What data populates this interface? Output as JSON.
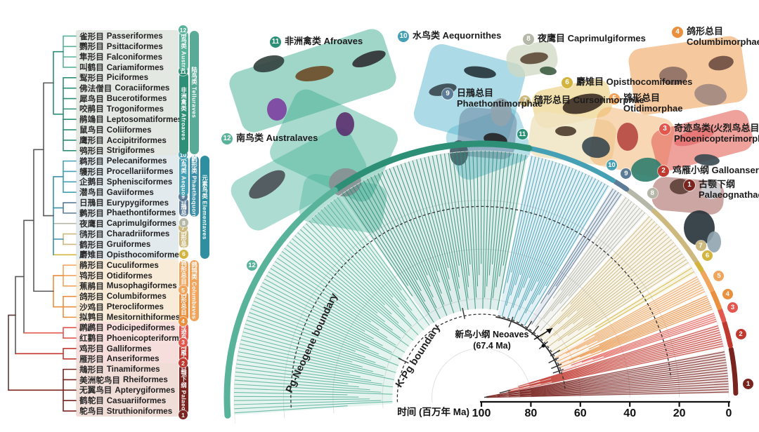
{
  "clades": [
    {
      "badge": "1",
      "cn": "古颚下纲",
      "en": "Palaeognathae",
      "color": "#7a2420",
      "rows": [
        32,
        36
      ],
      "badge_pos": "bottom",
      "angle_start_deg": 1,
      "angle_end_deg": 11,
      "origin_age_ma": 98,
      "tip_lineages": 16
    },
    {
      "badge": "2",
      "cn": "鸡雁小纲",
      "en": "Galloanseres",
      "color": "#c0392f",
      "rows": [
        30,
        31
      ],
      "badge_pos": "bottom",
      "angle_start_deg": 11.8,
      "angle_end_deg": 17.2,
      "origin_age_ma": 89,
      "tip_lineages": 10
    },
    {
      "badge": "3",
      "cn": "奇迹鸟类(火烈鸟总目)",
      "en": "Phoenicopterimorphae",
      "color": "#e2574e",
      "rows": [
        28,
        29
      ],
      "badge_pos": "bottom",
      "angle_start_deg": 17.8,
      "angle_end_deg": 20.2,
      "origin_age_ma": 66,
      "tip_lineages": 5
    },
    {
      "badge": "4",
      "cn": "鸽形总目",
      "en": "Columbimorphae",
      "color": "#e98f3e",
      "rows": [
        25,
        27
      ],
      "badge_pos": "bottom",
      "angle_start_deg": 20.8,
      "angle_end_deg": 24.6,
      "origin_age_ma": 66,
      "tip_lineages": 8
    },
    {
      "badge": "5",
      "cn": "鸨形总目",
      "en": "Otidimorphae",
      "color": "#f0a45c",
      "rows": [
        22,
        24
      ],
      "badge_pos": "bottom",
      "angle_start_deg": 25.2,
      "angle_end_deg": 29.6,
      "origin_age_ma": 66,
      "tip_lineages": 8
    },
    {
      "badge": "6",
      "cn": "麝雉目",
      "en": "Opisthocomiformes",
      "color": "#d3b43f",
      "rows": [
        21,
        21
      ],
      "badge_pos": "right",
      "angle_start_deg": 30.2,
      "angle_end_deg": 32.2,
      "origin_age_ma": 64,
      "tip_lineages": 2
    },
    {
      "badge": "7",
      "cn": "鸻形总目",
      "en": "Cursorimorphae",
      "color": "#cdb97d",
      "rows": [
        19,
        20
      ],
      "badge_pos": "top",
      "angle_start_deg": 32.8,
      "angle_end_deg": 47.6,
      "origin_age_ma": 66,
      "tip_lineages": 18
    },
    {
      "badge": "8",
      "cn": "夜鹰目",
      "en": "Caprimulgiformes",
      "color": "#b5b8a8",
      "rows": [
        18,
        18
      ],
      "badge_pos": "right",
      "angle_start_deg": 48.2,
      "angle_end_deg": 54.6,
      "origin_age_ma": 64,
      "tip_lineages": 8
    },
    {
      "badge": "9",
      "cn": "日鳽总目",
      "en": "Phaethontimorphae",
      "color": "#5b7b96",
      "rows": [
        16,
        17
      ],
      "badge_pos": "top",
      "angle_start_deg": 55.2,
      "angle_end_deg": 58.2,
      "origin_age_ma": 64,
      "tip_lineages": 4
    },
    {
      "badge": "10",
      "cn": "水鸟类",
      "en": "Aequornithes",
      "color": "#45a0b5",
      "rows": [
        12,
        15
      ],
      "badge_pos": "top",
      "angle_start_deg": 58.8,
      "angle_end_deg": 78.6,
      "origin_age_ma": 66,
      "tip_lineages": 24
    },
    {
      "badge": "11",
      "cn": "非洲禽类",
      "en": "Afroaves",
      "color": "#2e8f77",
      "rows": [
        4,
        11
      ],
      "badge_pos": "top",
      "angle_start_deg": 79.2,
      "angle_end_deg": 124.6,
      "origin_age_ma": 64,
      "tip_lineages": 48
    },
    {
      "badge": "12",
      "cn": "南鸟类",
      "en": "Australaves",
      "color": "#58b39a",
      "rows": [
        0,
        3
      ],
      "badge_pos": "top",
      "angle_start_deg": 125.2,
      "angle_end_deg": 184,
      "origin_age_ma": 64,
      "tip_lineages": 62
    }
  ],
  "super_clades": [
    {
      "cn": "陆鸟类",
      "en": "Telluraves",
      "color": "#59ab97",
      "rows": [
        0,
        11
      ],
      "col": 2
    },
    {
      "cn": "鹲形类",
      "en": "Phaethoquornithes",
      "color": "#3e8fa8",
      "rows": [
        12,
        17
      ],
      "col": 2
    },
    {
      "cn": "鸽鸨类",
      "en": "Columbaves",
      "color": "#f0a45c",
      "rows": [
        22,
        27
      ],
      "col": 2
    },
    {
      "cn": "元素鸟类",
      "en": "Elementaves",
      "color": "#2f8fa0",
      "rows": [
        12,
        21
      ],
      "col": 3
    }
  ],
  "left_tree": {
    "orders": [
      {
        "cn": "雀形目",
        "latin": "Passeriformes",
        "clade": "12"
      },
      {
        "cn": "鹦形目",
        "latin": "Psittaciformes",
        "clade": "12"
      },
      {
        "cn": "隼形目",
        "latin": "Falconiformes",
        "clade": "12"
      },
      {
        "cn": "叫鹤目",
        "latin": "Cariamiformes",
        "clade": "12"
      },
      {
        "cn": "䴕形目",
        "latin": "Piciformes",
        "clade": "11"
      },
      {
        "cn": "佛法僧目",
        "latin": "Coraciiformes",
        "clade": "11"
      },
      {
        "cn": "犀鸟目",
        "latin": "Bucerotiformes",
        "clade": "11"
      },
      {
        "cn": "咬鹃目",
        "latin": "Trogoniformes",
        "clade": "11"
      },
      {
        "cn": "鹃鴗目",
        "latin": "Leptosomatiformes",
        "clade": "11"
      },
      {
        "cn": "鼠鸟目",
        "latin": "Coliiformes",
        "clade": "11"
      },
      {
        "cn": "鹰形目",
        "latin": "Accipitriformes",
        "clade": "11"
      },
      {
        "cn": "鸮形目",
        "latin": "Strigiformes",
        "clade": "11"
      },
      {
        "cn": "鹈形目",
        "latin": "Pelecaniformes",
        "clade": "10"
      },
      {
        "cn": "鹱形目",
        "latin": "Procellariiformes",
        "clade": "10"
      },
      {
        "cn": "企鹅目",
        "latin": "Sphenisciformes",
        "clade": "10"
      },
      {
        "cn": "潜鸟目",
        "latin": "Gaviiformes",
        "clade": "10"
      },
      {
        "cn": "日鳽目",
        "latin": "Eurypygiformes",
        "clade": "9"
      },
      {
        "cn": "鹲形目",
        "latin": "Phaethontiformes",
        "clade": "9"
      },
      {
        "cn": "夜鹰目",
        "latin": "Caprimulgiformes",
        "clade": "8"
      },
      {
        "cn": "鸻形目",
        "latin": "Charadriiformes",
        "clade": "7"
      },
      {
        "cn": "鹤形目",
        "latin": "Gruiformes",
        "clade": "7"
      },
      {
        "cn": "麝雉目",
        "latin": "Opisthocomiformes",
        "clade": "6"
      },
      {
        "cn": "鹃形目",
        "latin": "Cuculiformes",
        "clade": "5"
      },
      {
        "cn": "鸨形目",
        "latin": "Otidiformes",
        "clade": "5"
      },
      {
        "cn": "蕉鹃目",
        "latin": "Musophagiformes",
        "clade": "5"
      },
      {
        "cn": "鸽形目",
        "latin": "Columbiformes",
        "clade": "4"
      },
      {
        "cn": "沙鸡目",
        "latin": "Pterocliformes",
        "clade": "4"
      },
      {
        "cn": "拟鹑目",
        "latin": "Mesitornithiformes",
        "clade": "4"
      },
      {
        "cn": "䴙䴘目",
        "latin": "Podicipediformes",
        "clade": "3"
      },
      {
        "cn": "红鹳目",
        "latin": "Phoenicopteriformes",
        "clade": "3"
      },
      {
        "cn": "鸡形目",
        "latin": "Galliformes",
        "clade": "2"
      },
      {
        "cn": "雁形目",
        "latin": "Anseriformes",
        "clade": "2"
      },
      {
        "cn": "䳍形目",
        "latin": "Tinamiformes",
        "clade": "1"
      },
      {
        "cn": "美洲鸵鸟目",
        "latin": "Rheiformes",
        "clade": "1"
      },
      {
        "cn": "无翼鸟目",
        "latin": "Apterygiformes",
        "clade": "1"
      },
      {
        "cn": "鹤鸵目",
        "latin": "Casuariiformes",
        "clade": "1"
      },
      {
        "cn": "鸵鸟目",
        "latin": "Struthioniformes",
        "clade": "1"
      }
    ],
    "row_group_tints": [
      {
        "rows": [
          0,
          11
        ],
        "bg": "#e4e8e3"
      },
      {
        "rows": [
          12,
          21
        ],
        "bg": "#e3eaee"
      },
      {
        "rows": [
          22,
          27
        ],
        "bg": "#f8ecd9"
      },
      {
        "rows": [
          28,
          29
        ],
        "bg": "#f7e0dd"
      },
      {
        "rows": [
          30,
          31
        ],
        "bg": "#f5dedb"
      },
      {
        "rows": [
          32,
          36
        ],
        "bg": "#f1ddd8"
      }
    ]
  },
  "fan": {
    "axis": {
      "label": "时间 (百万年 Ma)",
      "ticks": [
        100,
        80,
        60,
        40,
        20,
        0
      ]
    },
    "boundaries": [
      {
        "label": "Pg-Neogene boundary",
        "age_ma": 23
      },
      {
        "label": "K-Pg boundary",
        "age_ma": 66
      }
    ],
    "root": {
      "line1": "新鸟小纲 Neoaves",
      "line2": "(67.4 Ma)",
      "age_ma": 67.4
    }
  },
  "chart_data": {
    "type": "phylogenetic_fan_tree",
    "title": "",
    "time_axis": {
      "label": "时间 (百万年 Ma)",
      "ticks_ma": [
        100,
        80,
        60,
        40,
        20,
        0
      ],
      "present_at": "outer rim"
    },
    "boundaries": [
      {
        "name": "Pg-Neogene boundary",
        "age_ma": 23
      },
      {
        "name": "K-Pg boundary",
        "age_ma": 66
      }
    ],
    "root_annotation": {
      "name_cn": "新鸟小纲",
      "name_en": "Neoaves",
      "age_ma": 67.4
    },
    "clade_count": 12,
    "order_count": 37
  }
}
